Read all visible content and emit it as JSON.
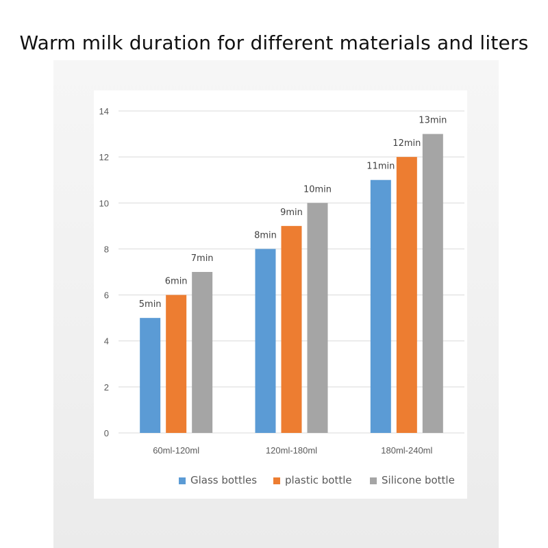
{
  "page": {
    "title": "Warm milk duration for different materials and liters"
  },
  "chart_data": {
    "type": "bar",
    "categories": [
      "60ml-120ml",
      "120ml-180ml",
      "180ml-240ml"
    ],
    "series": [
      {
        "name": "Glass bottles",
        "values": [
          5,
          8,
          11
        ],
        "labels": [
          "5min",
          "8min",
          "11min"
        ],
        "color": "#5b9bd5"
      },
      {
        "name": "plastic bottle",
        "values": [
          6,
          9,
          12
        ],
        "labels": [
          "6min",
          "9min",
          "12min"
        ],
        "color": "#ed7d31"
      },
      {
        "name": "Silicone bottle",
        "values": [
          7,
          10,
          13
        ],
        "labels": [
          "7min",
          "10min",
          "13min"
        ],
        "color": "#a5a5a5"
      }
    ],
    "ylim": [
      0,
      14
    ],
    "yticks": [
      0,
      2,
      4,
      6,
      8,
      10,
      12,
      14
    ],
    "grid": true,
    "legend": "bottom",
    "grid_color": "#d9d9d9",
    "axis_text_color": "#595959"
  }
}
